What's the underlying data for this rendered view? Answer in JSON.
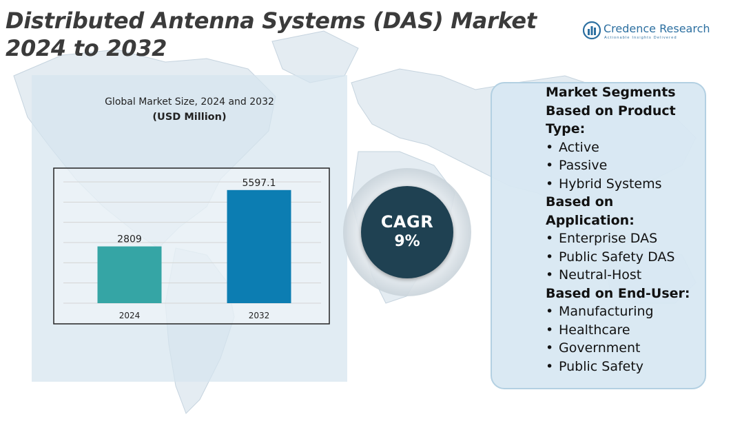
{
  "title": "Distributed Antenna Systems (DAS) Market 2024 to 2032",
  "brand": {
    "name": "Credence Research",
    "tagline": "Actionable Insights Delivered",
    "color": "#2c6fa0"
  },
  "colors": {
    "bar_2024": "#35a5a5",
    "bar_2032": "#0c7db2",
    "cagr_circle": "#1f4152",
    "panel": "#d6e4ee"
  },
  "chart_data": {
    "type": "bar",
    "title": "Global Market Size, 2024 and 2032",
    "subtitle": "(USD Million)",
    "categories": [
      "2024",
      "2032"
    ],
    "values": [
      2809,
      5597.1
    ],
    "value_labels": [
      "2809",
      "5597.1"
    ],
    "ylim": [
      0,
      6000
    ],
    "grid": true,
    "xlabel": "",
    "ylabel": ""
  },
  "cagr": {
    "label": "CAGR",
    "value": "9%"
  },
  "segments": {
    "header": "Market Segments",
    "groups": [
      {
        "heading": "Based on Product Type:",
        "items": [
          "Active",
          "Passive",
          "Hybrid Systems"
        ]
      },
      {
        "heading": "Based on Application:",
        "items": [
          "Enterprise DAS",
          "Public Safety DAS",
          "Neutral-Host"
        ]
      },
      {
        "heading": "Based on End-User:",
        "items": [
          "Manufacturing",
          "Healthcare",
          "Government",
          "Public Safety"
        ]
      }
    ]
  }
}
